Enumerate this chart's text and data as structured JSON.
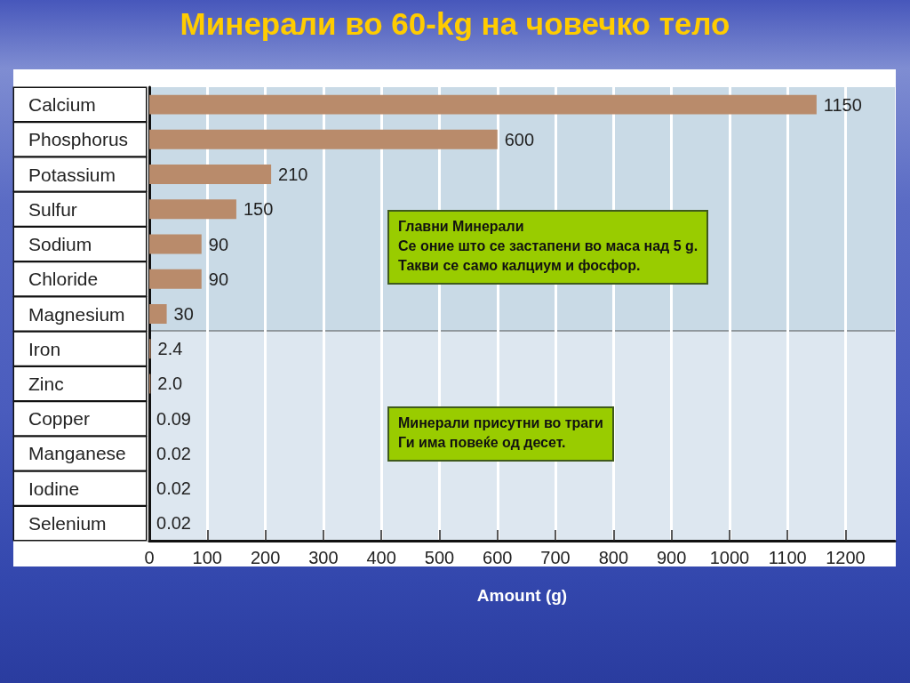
{
  "chart_data": {
    "type": "bar",
    "orientation": "horizontal",
    "title": "Минерали во 60-kg на човечко тело",
    "xlabel": "Amount (g)",
    "categories": [
      "Calcium",
      "Phosphorus",
      "Potassium",
      "Sulfur",
      "Sodium",
      "Chloride",
      "Magnesium",
      "Iron",
      "Zinc",
      "Copper",
      "Manganese",
      "Iodine",
      "Selenium"
    ],
    "values": [
      1150,
      600,
      210,
      150,
      90,
      90,
      30,
      2.4,
      2.0,
      0.09,
      0.02,
      0.02,
      0.02
    ],
    "value_labels": [
      "1150",
      "600",
      "210",
      "150",
      "90",
      "90",
      "30",
      "2.4",
      "2.0",
      "0.09",
      "0.02",
      "0.02",
      "0.02"
    ],
    "color": "#b98b6b",
    "xlim": [
      0,
      1285
    ],
    "xticks": [
      0,
      100,
      200,
      300,
      400,
      500,
      600,
      700,
      800,
      900,
      1000,
      1100,
      1200
    ],
    "grid": "x",
    "bands": [
      {
        "axis": "y",
        "from": "Calcium",
        "to": "Magnesium",
        "color": "#c9dae6"
      },
      {
        "axis": "y",
        "from": "Iron",
        "to": "Selenium",
        "color": "#dde7f0"
      }
    ],
    "annotations": [
      "Главни Минерали\nСе оние што се застапени во маса над 5 g.\nТакви се само калциум и фосфор.",
      "Минерали присутни во траги\nГи има повеќе од десет."
    ]
  }
}
